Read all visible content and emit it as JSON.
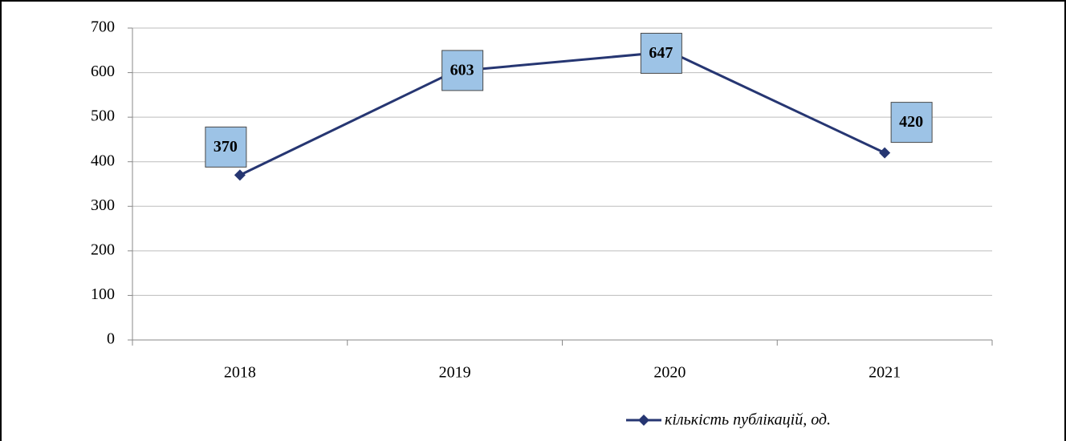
{
  "chart_data": {
    "type": "line",
    "categories": [
      "2018",
      "2019",
      "2020",
      "2021"
    ],
    "series": [
      {
        "name": "кількість публікацій, од.",
        "color": "#263672",
        "values": [
          370,
          603,
          647,
          420
        ]
      }
    ],
    "ylim": [
      0,
      700
    ],
    "yticks": [
      0,
      100,
      200,
      300,
      400,
      500,
      600,
      700
    ],
    "grid": true,
    "legend": "bottom",
    "data_labels": true
  }
}
